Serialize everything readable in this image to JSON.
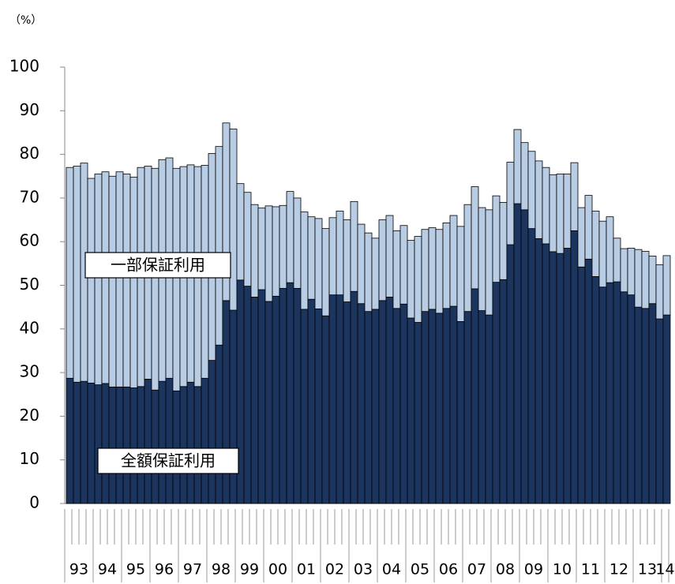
{
  "chart_data": {
    "type": "stacked_bar",
    "unit_label": "（%）",
    "categories": [
      "93",
      null,
      null,
      null,
      "94",
      null,
      null,
      null,
      "95",
      null,
      null,
      null,
      "96",
      null,
      null,
      null,
      "97",
      null,
      null,
      null,
      "98",
      null,
      null,
      null,
      "99",
      null,
      null,
      null,
      "00",
      null,
      null,
      null,
      "01",
      null,
      null,
      null,
      "02",
      null,
      null,
      null,
      "03",
      null,
      null,
      null,
      "04",
      null,
      null,
      null,
      "05",
      null,
      null,
      null,
      "06",
      null,
      null,
      null,
      "07",
      null,
      null,
      null,
      "08",
      null,
      null,
      null,
      "09",
      null,
      null,
      null,
      "10",
      null,
      null,
      null,
      "11",
      null,
      null,
      null,
      "12",
      null,
      null,
      null,
      "13",
      null,
      null,
      null,
      "14"
    ],
    "series": [
      {
        "name": "全額保証利用",
        "color": "#1b355e",
        "values": [
          28.7,
          27.8,
          28,
          27.6,
          27.2,
          27.5,
          26.7,
          26.7,
          26.7,
          26.5,
          26.8,
          28.5,
          26,
          28,
          28.7,
          25.8,
          26.8,
          27.8,
          26.8,
          28.7,
          32.8,
          36.3,
          46.5,
          44.3,
          51.2,
          49.8,
          47.3,
          49,
          46.3,
          47.5,
          49.3,
          50.6,
          49.3,
          44.5,
          46.8,
          44.6,
          43,
          47.8,
          47.8,
          46.2,
          48.6,
          45.8,
          44,
          44.5,
          46.5,
          47.3,
          44.7,
          45.7,
          42.5,
          41.5,
          44,
          44.5,
          43.6,
          44.7,
          45.2,
          41.7,
          44,
          49.2,
          44.2,
          43.2,
          50.7,
          51.3,
          59.3,
          68.7,
          67.3,
          63,
          60.7,
          59.5,
          57.7,
          57.3,
          58.5,
          62.5,
          54.2,
          56,
          52,
          49.6,
          50.6,
          50.8,
          48.5,
          47.8,
          45,
          44.7,
          45.8,
          42.3,
          43.2
        ]
      },
      {
        "name": "一部保証利用",
        "color": "#b8cce4",
        "values": [
          48.3,
          49.5,
          50,
          46.9,
          48.3,
          48.5,
          48.3,
          49.3,
          48.8,
          48.3,
          50.2,
          48.8,
          50.8,
          50.8,
          50.5,
          51,
          50.4,
          49.8,
          50.4,
          48.8,
          47.4,
          45.5,
          40.7,
          41.5,
          22.1,
          21.5,
          21.2,
          18.7,
          21.9,
          20.5,
          19,
          20.9,
          20.7,
          22.3,
          18.9,
          20.7,
          20,
          17.7,
          19.2,
          18.8,
          20.6,
          18.2,
          18,
          16.3,
          18.5,
          18.7,
          17.8,
          18,
          17.8,
          19.7,
          18.8,
          18.7,
          19.2,
          19.6,
          20.8,
          21.8,
          24.5,
          23.4,
          23.6,
          24.1,
          19.8,
          17.7,
          18.9,
          17,
          15.4,
          17.7,
          17.8,
          17.5,
          17.6,
          18.2,
          17,
          15.6,
          13.6,
          14.6,
          15,
          15.1,
          15.1,
          10,
          9.9,
          10.7,
          13.2,
          13.1,
          10.9,
          12.4,
          13.6
        ]
      }
    ],
    "ylim": [
      0,
      100
    ],
    "yticks": [
      0,
      10,
      20,
      30,
      40,
      50,
      60,
      70,
      80,
      90,
      100
    ],
    "grid": false
  }
}
